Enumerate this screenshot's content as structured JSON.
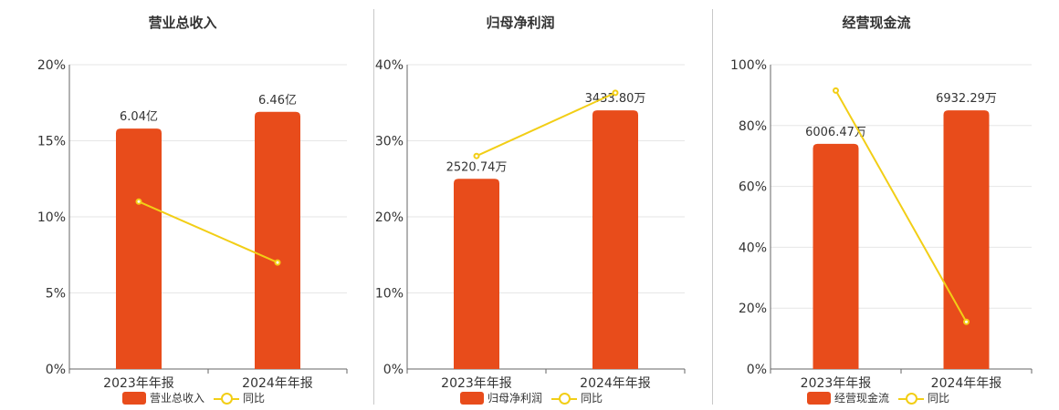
{
  "colors": {
    "bar": "#E84C1B",
    "line": "#F2CE16",
    "grid": "#e6e6e6",
    "axis": "#666666"
  },
  "chart_data": [
    {
      "type": "bar",
      "title": "营业总收入",
      "categories": [
        "2023年年报",
        "2024年年报"
      ],
      "ylim": [
        0,
        20
      ],
      "yticks": [
        "0%",
        "5%",
        "10%",
        "15%",
        "20%"
      ],
      "series": [
        {
          "name": "营业总收入",
          "type": "bar",
          "values": [
            15.8,
            16.9
          ],
          "labels": [
            "6.04亿",
            "6.46亿"
          ]
        },
        {
          "name": "同比",
          "type": "line",
          "values": [
            11.0,
            7.0
          ]
        }
      ]
    },
    {
      "type": "bar",
      "title": "归母净利润",
      "categories": [
        "2023年年报",
        "2024年年报"
      ],
      "ylim": [
        0,
        40
      ],
      "yticks": [
        "0%",
        "10%",
        "20%",
        "30%",
        "40%"
      ],
      "series": [
        {
          "name": "归母净利润",
          "type": "bar",
          "values": [
            25.0,
            34.0
          ],
          "labels": [
            "2520.74万",
            "3433.80万"
          ]
        },
        {
          "name": "同比",
          "type": "line",
          "values": [
            28.0,
            36.3
          ]
        }
      ]
    },
    {
      "type": "bar",
      "title": "经营现金流",
      "categories": [
        "2023年年报",
        "2024年年报"
      ],
      "ylim": [
        0,
        100
      ],
      "yticks": [
        "0%",
        "20%",
        "40%",
        "60%",
        "80%",
        "100%"
      ],
      "series": [
        {
          "name": "经营现金流",
          "type": "bar",
          "values": [
            74.0,
            85.0
          ],
          "labels": [
            "6006.47万",
            "6932.29万"
          ]
        },
        {
          "name": "同比",
          "type": "line",
          "values": [
            91.5,
            15.5
          ]
        }
      ]
    }
  ]
}
